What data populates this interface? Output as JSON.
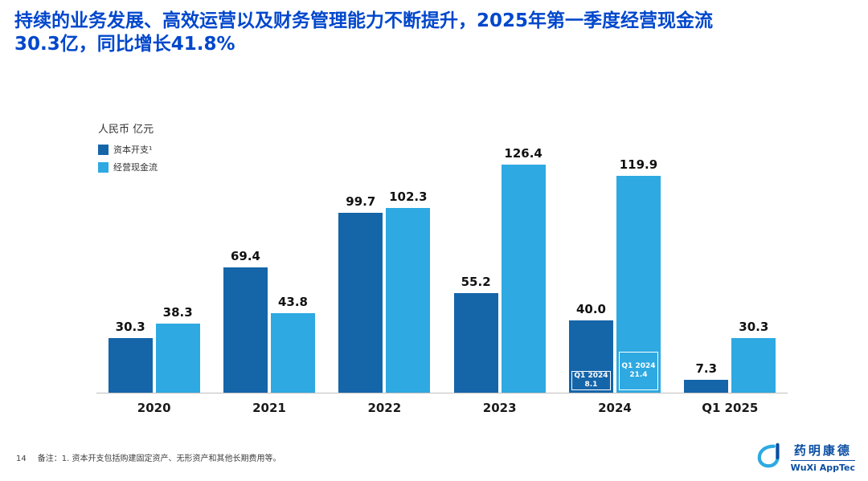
{
  "slide": {
    "title": "持续的业务发展、高效运营以及财务管理能力不断提升，2025年第一季度经营现金流30.3亿，同比增长41.8%",
    "colors": {
      "title": "#0047CC",
      "axis": "#BFBFBF",
      "logo": "#0B4EA2"
    },
    "footer": {
      "page_number": "14",
      "note": "备注：1. 资本开支包括购建固定资产、无形资产和其他长期费用等。"
    },
    "logo": {
      "cn": "药明康德",
      "en": "WuXi AppTec"
    }
  },
  "chart_data": {
    "type": "bar",
    "title": "",
    "unit_label": "人民币 亿元",
    "categories": [
      "2020",
      "2021",
      "2022",
      "2023",
      "2024",
      "Q1 2025"
    ],
    "series": [
      {
        "name": "资本开支¹",
        "color": "#1565A9",
        "values": [
          30.3,
          69.4,
          99.7,
          55.2,
          40.0,
          7.3
        ]
      },
      {
        "name": "经营现金流",
        "color": "#2EA9E2",
        "values": [
          38.3,
          43.8,
          102.3,
          126.4,
          119.9,
          30.3
        ]
      }
    ],
    "annotations": [
      {
        "category": "2024",
        "series": "资本开支¹",
        "label": "Q1 2024",
        "value": 8.1
      },
      {
        "category": "2024",
        "series": "经营现金流",
        "label": "Q1 2024",
        "value": 21.4
      }
    ],
    "ylim": [
      0,
      140
    ],
    "grid": false,
    "legend_position": "top-left"
  }
}
